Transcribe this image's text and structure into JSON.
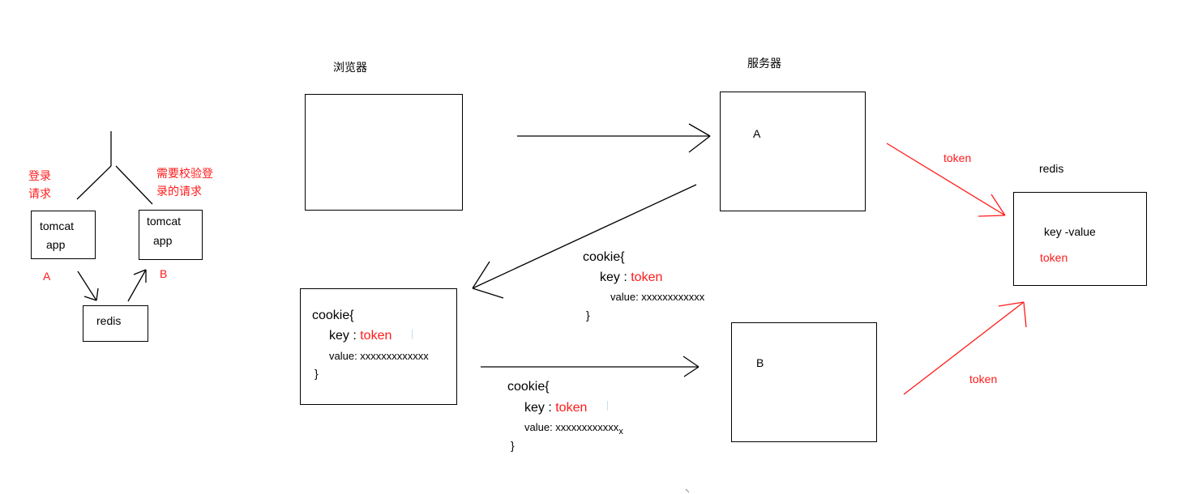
{
  "left_diagram": {
    "login_request": [
      "登录",
      "请求"
    ],
    "verify_request": [
      "需要校验登",
      "录的请求"
    ],
    "tomcat_a": [
      "tomcat",
      "app"
    ],
    "tomcat_b": [
      "tomcat",
      "app"
    ],
    "label_a": "A",
    "label_b": "B",
    "redis": "redis"
  },
  "main_diagram": {
    "browser_title": "浏览器",
    "server_title": "服务器",
    "server_a": "A",
    "server_b": "B",
    "redis_title": "redis",
    "redis_box": {
      "line1": "key -value",
      "line2": "token"
    },
    "token_top": "token",
    "token_bottom": "token",
    "cookie_response": {
      "open": "cookie{",
      "key_label": "key : ",
      "key_value": "token",
      "value_line": "value: xxxxxxxxxxxx",
      "close": "}"
    },
    "cookie_browser": {
      "open": "cookie{",
      "key_label": "key : ",
      "key_value": "token",
      "value_line": "value: xxxxxxxxxxxxx",
      "close": "}"
    },
    "cookie_request": {
      "open": "cookie{",
      "key_label": "key : ",
      "key_value": "token",
      "value_line": "value: xxxxxxxxxxxx",
      "value_tail": "x",
      "close": "}"
    }
  },
  "colors": {
    "line": "#000000",
    "accent_red": "#ff1a1a"
  }
}
